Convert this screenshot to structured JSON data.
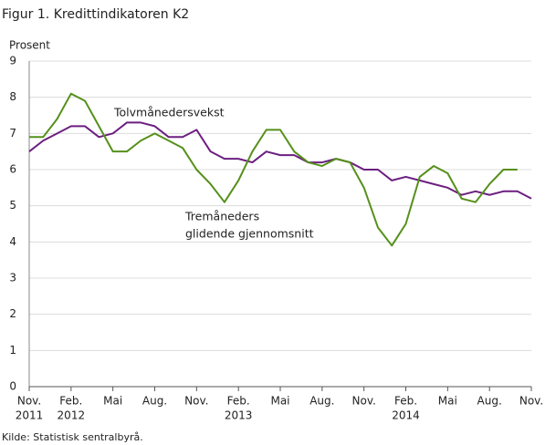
{
  "chart_data": {
    "type": "line",
    "title": "Figur 1. Kredittindikatoren K2",
    "y_label": "Prosent",
    "source": "Kilde: Statistisk sentralbyrå.",
    "annotations": [
      "Tolvmånedersvekst",
      "Tremåneders",
      "glidende gjennomsnitt"
    ],
    "categories": [
      "Nov.",
      null,
      null,
      "Feb.",
      null,
      null,
      "Mai",
      null,
      null,
      "Aug.",
      null,
      null,
      "Nov.",
      null,
      null,
      "Feb.",
      null,
      null,
      "Mai",
      null,
      null,
      "Aug.",
      null,
      null,
      "Nov.",
      null,
      null,
      "Feb.",
      null,
      null,
      "Mai",
      null,
      null,
      "Aug.",
      null,
      null,
      "Nov."
    ],
    "year_labels": [
      "2011",
      null,
      null,
      "2012",
      null,
      null,
      null,
      null,
      null,
      null,
      null,
      null,
      null,
      null,
      null,
      "2013",
      null,
      null,
      null,
      null,
      null,
      null,
      null,
      null,
      null,
      null,
      null,
      "2014",
      null,
      null,
      null,
      null,
      null,
      null,
      null,
      null,
      null
    ],
    "series": [
      {
        "color": "#6b1f80",
        "values": [
          6.5,
          6.8,
          7.0,
          7.2,
          7.2,
          6.9,
          7.0,
          7.3,
          7.3,
          7.2,
          6.9,
          6.9,
          7.1,
          6.5,
          6.3,
          6.3,
          6.2,
          6.5,
          6.4,
          6.4,
          6.2,
          6.2,
          6.3,
          6.2,
          6.0,
          6.0,
          5.7,
          5.8,
          5.7,
          5.6,
          5.5,
          5.3,
          5.4,
          5.3,
          5.4,
          5.4,
          5.2
        ]
      },
      {
        "color": "#55901a",
        "values": [
          6.9,
          6.9,
          7.4,
          8.1,
          7.9,
          7.2,
          6.5,
          6.5,
          6.8,
          7.0,
          6.8,
          6.6,
          6.0,
          5.6,
          5.1,
          5.7,
          6.5,
          7.1,
          7.1,
          6.5,
          6.2,
          6.1,
          6.3,
          6.2,
          5.5,
          4.4,
          3.9,
          4.5,
          5.8,
          6.1,
          5.9,
          5.2,
          5.1,
          5.6,
          6.0,
          6.0,
          null
        ]
      }
    ],
    "ylim": [
      0,
      9
    ],
    "yticks": [
      0,
      1,
      2,
      3,
      4,
      5,
      6,
      7,
      8,
      9
    ],
    "grid": true
  }
}
